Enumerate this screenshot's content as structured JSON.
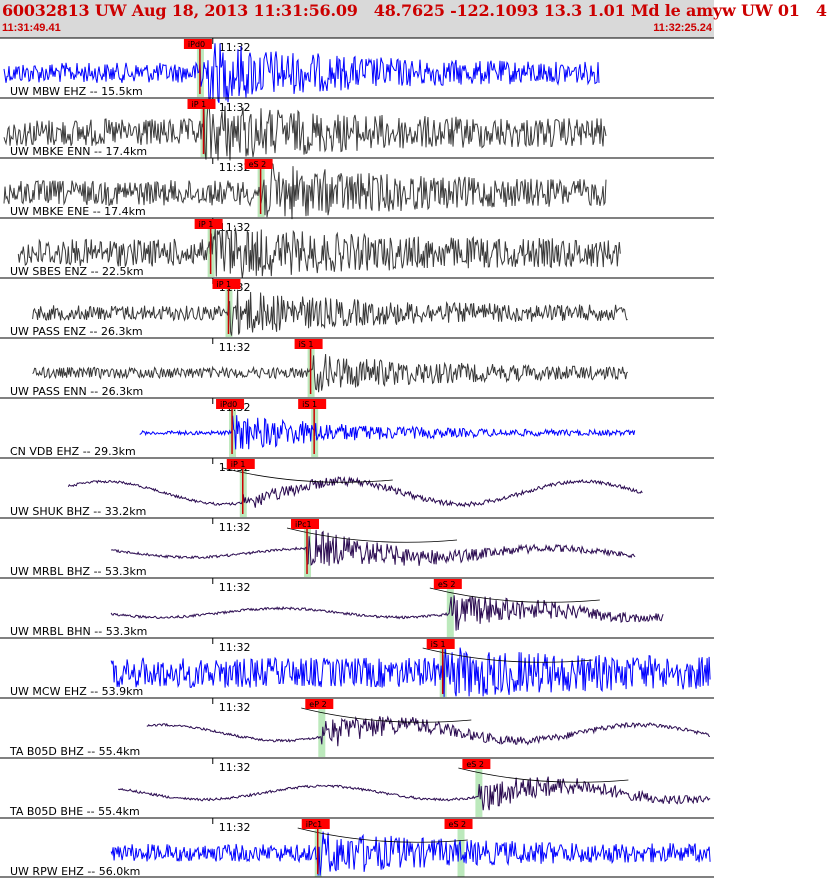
{
  "header": {
    "title": "60032813 UW Aug 18, 2013 11:31:56.09   48.7625 -122.1093 13.3 1.01 Md le amyw UW 01   4",
    "start_time": "11:31:49.41",
    "end_time": "11:32:25.24",
    "text_color": "#cc0000",
    "background": "#d9d9d9"
  },
  "colors": {
    "trace_blue": "#0000ff",
    "trace_gray": "#3a3a3a",
    "trace_purple": "#2a0a50",
    "pick_box": "#ff0000",
    "pick_line": "#cc0000",
    "window_band": "#9fdf9f"
  },
  "minute_label": "11:32",
  "channels": [
    {
      "label": "UW MBW EHZ -- 15.5km",
      "style": "blue",
      "amp": 0.4,
      "burst_amp": 1.0,
      "start": 0.0,
      "end": 0.84,
      "picks": [
        {
          "label": "iPd0",
          "t": 0.28,
          "line": true
        }
      ]
    },
    {
      "label": "UW MBKE ENN -- 17.4km",
      "style": "gray",
      "amp": 0.55,
      "burst_amp": 0.75,
      "start": 0.0,
      "end": 0.85,
      "picks": [
        {
          "label": "iP 1",
          "t": 0.285,
          "line": true
        }
      ]
    },
    {
      "label": "UW MBKE ENE -- 17.4km",
      "style": "gray",
      "amp": 0.5,
      "burst_amp": 0.75,
      "start": 0.0,
      "end": 0.85,
      "picks": [
        {
          "label": "eS 2",
          "t": 0.365,
          "line": true
        }
      ]
    },
    {
      "label": "UW SBES ENZ -- 22.5km",
      "style": "gray",
      "amp": 0.55,
      "burst_amp": 0.65,
      "start": 0.02,
      "end": 0.87,
      "picks": [
        {
          "label": "iP 1",
          "t": 0.295,
          "line": true
        }
      ]
    },
    {
      "label": "UW PASS ENZ -- 26.3km",
      "style": "gray",
      "amp": 0.3,
      "burst_amp": 0.7,
      "start": 0.04,
      "end": 0.88,
      "picks": [
        {
          "label": "iP 1",
          "t": 0.32,
          "line": true
        }
      ]
    },
    {
      "label": "UW PASS ENN -- 26.3km",
      "style": "gray",
      "amp": 0.22,
      "burst_amp": 0.6,
      "start": 0.04,
      "end": 0.88,
      "picks": [
        {
          "label": "iS 1",
          "t": 0.435,
          "line": true
        }
      ]
    },
    {
      "label": "CN VDB EHZ -- 29.3km",
      "style": "blue",
      "amp": 0.08,
      "burst_amp": 0.7,
      "start": 0.19,
      "end": 0.89,
      "picks": [
        {
          "label": "iPd0",
          "t": 0.325,
          "line": true
        },
        {
          "label": "iS 1",
          "t": 0.44,
          "line": true
        }
      ]
    },
    {
      "label": "UW SHUK BHZ -- 33.2km",
      "style": "purple",
      "amp": 0.5,
      "burst_amp": 0.3,
      "start": 0.09,
      "end": 0.9,
      "picks": [
        {
          "label": "iP 1",
          "t": 0.34,
          "line": true
        }
      ]
    },
    {
      "label": "UW MRBL BHZ -- 53.3km",
      "style": "purple",
      "amp": 0.2,
      "burst_amp": 0.75,
      "start": 0.15,
      "end": 0.89,
      "picks": [
        {
          "label": "iPc1",
          "t": 0.43,
          "line": true
        }
      ]
    },
    {
      "label": "UW MRBL BHN -- 53.3km",
      "style": "purple",
      "amp": 0.2,
      "burst_amp": 0.7,
      "start": 0.15,
      "end": 0.93,
      "picks": [
        {
          "label": "eS 2",
          "t": 0.63,
          "line": false
        }
      ]
    },
    {
      "label": "UW MCW EHZ -- 53.9km",
      "style": "blue",
      "amp": 0.6,
      "burst_amp": 0.5,
      "start": 0.15,
      "end": 0.995,
      "picks": [
        {
          "label": "iS 1",
          "t": 0.62,
          "line": true
        }
      ]
    },
    {
      "label": "TA B05D BHZ -- 55.4km",
      "style": "purple",
      "amp": 0.35,
      "burst_amp": 0.6,
      "start": 0.2,
      "end": 0.995,
      "picks": [
        {
          "label": "eP 2",
          "t": 0.45,
          "line": false
        }
      ]
    },
    {
      "label": "TA B05D BHE -- 55.4km",
      "style": "purple",
      "amp": 0.3,
      "burst_amp": 0.65,
      "start": 0.16,
      "end": 0.995,
      "picks": [
        {
          "label": "eS 2",
          "t": 0.67,
          "line": false
        }
      ]
    },
    {
      "label": "UW RPW EHZ -- 56.0km",
      "style": "blue",
      "amp": 0.35,
      "burst_amp": 0.6,
      "start": 0.15,
      "end": 0.995,
      "picks": [
        {
          "label": "iPc1",
          "t": 0.445,
          "line": true
        },
        {
          "label": "eS 2",
          "t": 0.645,
          "line": false
        }
      ]
    }
  ]
}
